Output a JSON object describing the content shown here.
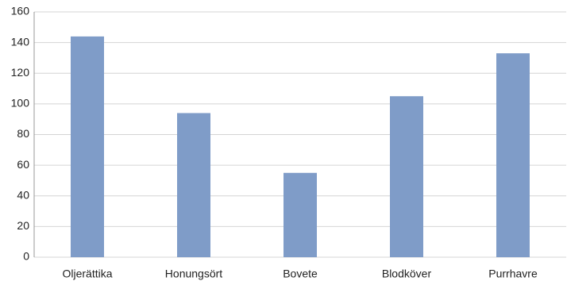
{
  "chart_data": {
    "type": "bar",
    "categories": [
      "Oljerättika",
      "Honungsört",
      "Bovete",
      "Blodköver",
      "Purrhavre"
    ],
    "values": [
      144,
      94,
      55,
      105,
      133
    ],
    "color": "#7f9cc8",
    "ylim": [
      0,
      160
    ],
    "yticks": [
      0,
      20,
      40,
      60,
      80,
      100,
      120,
      140,
      160
    ],
    "grid": true
  }
}
